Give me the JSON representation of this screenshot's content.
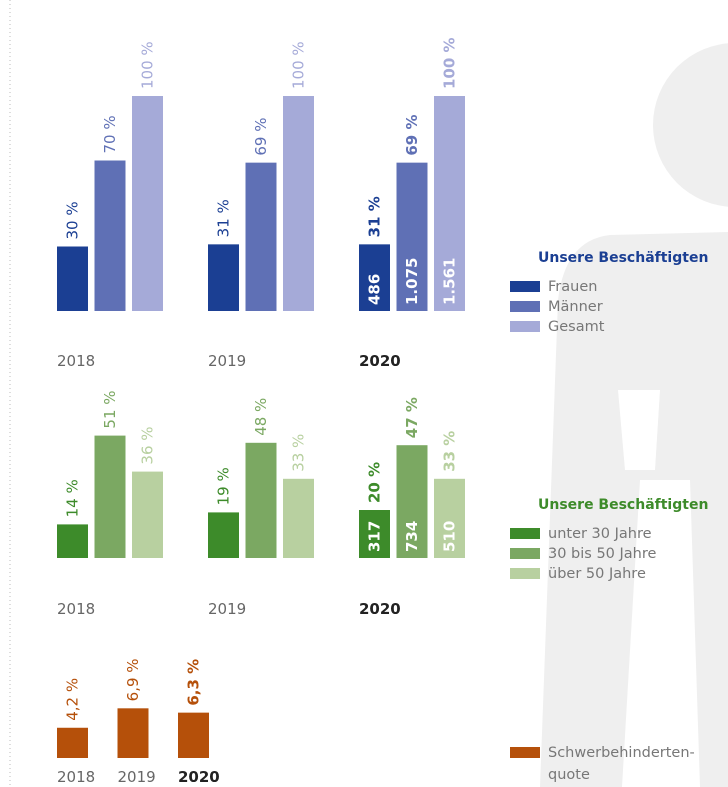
{
  "chart_data": [
    {
      "type": "bar",
      "legend_title": "Unsere Beschäftigten",
      "categories": [
        "2018",
        "2019",
        "2020"
      ],
      "series": [
        {
          "name": "Frauen",
          "color": "#1b3f93",
          "values": [
            30,
            31,
            31
          ],
          "value_labels": [
            "30 %",
            "31 %",
            "31 %"
          ],
          "counts": [
            null,
            null,
            486
          ]
        },
        {
          "name": "Männer",
          "color": "#5f70b5",
          "values": [
            70,
            69,
            69
          ],
          "value_labels": [
            "70 %",
            "69 %",
            "69 %"
          ],
          "counts": [
            null,
            null,
            1075
          ],
          "count_labels": [
            null,
            null,
            "1.075"
          ]
        },
        {
          "name": "Gesamt",
          "color": "#a5aad8",
          "values": [
            100,
            100,
            100
          ],
          "value_labels": [
            "100 %",
            "100 %",
            "100 %"
          ],
          "counts": [
            null,
            null,
            1561
          ],
          "count_labels": [
            null,
            null,
            "1.561"
          ]
        }
      ]
    },
    {
      "type": "bar",
      "legend_title": "Unsere Beschäftigten",
      "categories": [
        "2018",
        "2019",
        "2020"
      ],
      "series": [
        {
          "name": "unter 30 Jahre",
          "color": "#3d8b2a",
          "values": [
            14,
            19,
            20
          ],
          "value_labels": [
            "14 %",
            "19 %",
            "20 %"
          ],
          "counts": [
            null,
            null,
            317
          ]
        },
        {
          "name": "30 bis 50 Jahre",
          "color": "#7ba862",
          "values": [
            51,
            48,
            47
          ],
          "value_labels": [
            "51 %",
            "48 %",
            "47 %"
          ],
          "counts": [
            null,
            null,
            734
          ]
        },
        {
          "name": "über 50 Jahre",
          "color": "#b8d0a0",
          "values": [
            36,
            33,
            33
          ],
          "value_labels": [
            "36 %",
            "33 %",
            "33 %"
          ],
          "counts": [
            null,
            null,
            510
          ]
        }
      ]
    },
    {
      "type": "bar",
      "categories": [
        "2018",
        "2019",
        "2020"
      ],
      "series": [
        {
          "name": "Schwerbehinderten­quote",
          "color": "#b5500a",
          "values": [
            4.2,
            6.9,
            6.3
          ],
          "value_labels": [
            "4,2 %",
            "6,9 %",
            "6,3 %"
          ]
        }
      ]
    }
  ]
}
